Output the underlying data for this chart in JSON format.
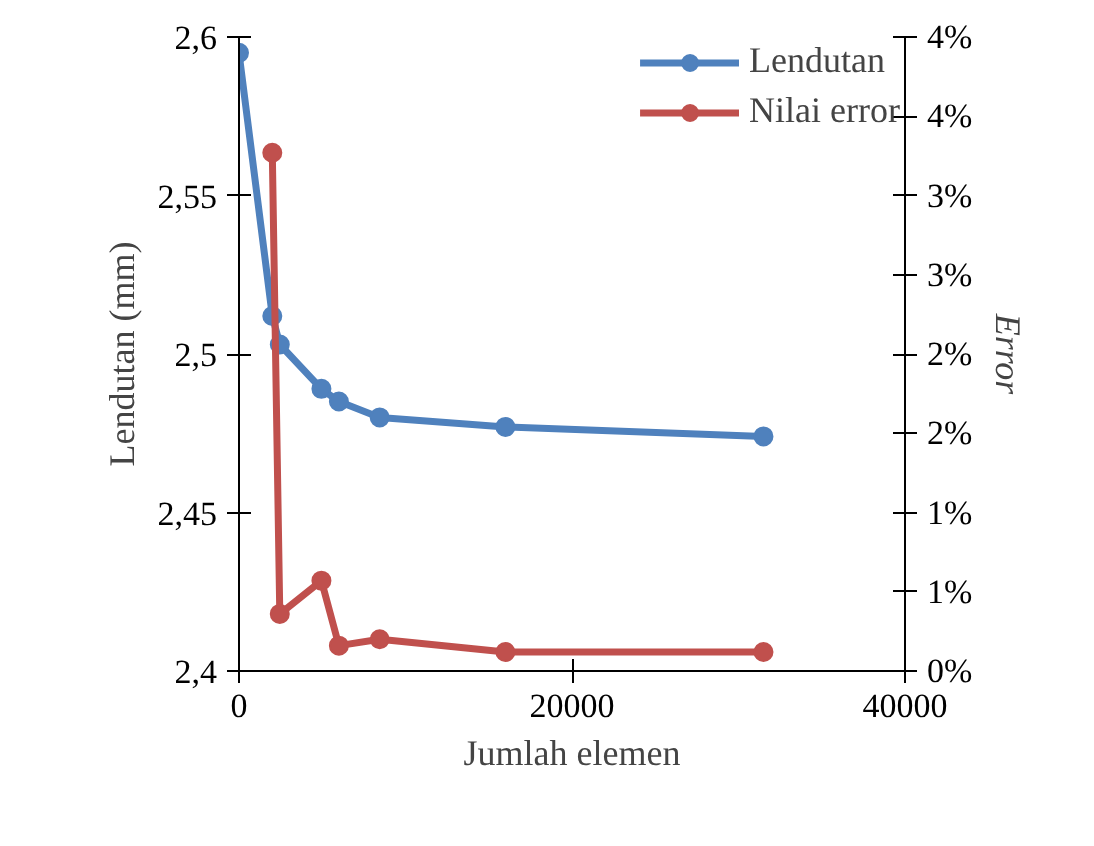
{
  "chart_data": {
    "type": "line",
    "xlabel": "Jumlah elemen",
    "ylabel": "Lendutan (mm)",
    "y2label": "Error",
    "xlim": [
      0,
      40000
    ],
    "xticks": [
      0,
      20000,
      40000
    ],
    "ylim": [
      2.4,
      2.6
    ],
    "yticks": [
      {
        "value": 2.4,
        "label": "2,4"
      },
      {
        "value": 2.45,
        "label": "2,45"
      },
      {
        "value": 2.5,
        "label": "2,5"
      },
      {
        "value": 2.55,
        "label": "2,55"
      },
      {
        "value": 2.6,
        "label": "2,6"
      }
    ],
    "y2lim": [
      0,
      4
    ],
    "y2ticks": [
      {
        "value": 0,
        "label": "0%"
      },
      {
        "value": 0.5,
        "label": "1%"
      },
      {
        "value": 1,
        "label": "1%"
      },
      {
        "value": 1.5,
        "label": "2%"
      },
      {
        "value": 2,
        "label": "2%"
      },
      {
        "value": 2.5,
        "label": "3%"
      },
      {
        "value": 3,
        "label": "3%"
      },
      {
        "value": 3.5,
        "label": "4%"
      },
      {
        "value": 4,
        "label": "4%"
      }
    ],
    "series": [
      {
        "name": "Lendutan",
        "color": "#4f81bd",
        "x": [
          0,
          2000,
          2450,
          4950,
          6000,
          8450,
          16000,
          31500
        ],
        "values": [
          2.595,
          2.512,
          2.503,
          2.489,
          2.485,
          2.48,
          2.477,
          2.474
        ]
      },
      {
        "name": "Nilai error",
        "color": "#c0504d",
        "axis": "y2",
        "x": [
          2000,
          2450,
          4950,
          6000,
          8450,
          16000,
          31500
        ],
        "values": [
          3.27,
          0.36,
          0.57,
          0.16,
          0.2,
          0.12,
          0.12
        ]
      }
    ],
    "marker": "circle",
    "line_style": "solid",
    "grid": false,
    "legend": "top right"
  }
}
